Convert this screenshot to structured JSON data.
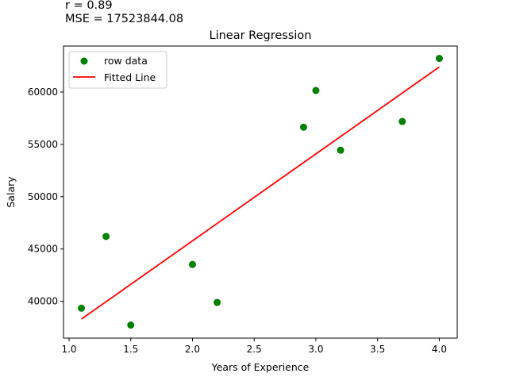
{
  "annotations": {
    "r_text": "r = 0.89",
    "mse_text": "MSE = 17523844.08"
  },
  "chart_data": {
    "type": "scatter",
    "title": "Linear Regression",
    "xlabel": "Years of Experience",
    "ylabel": "Salary",
    "xlim": [
      0.955,
      4.145
    ],
    "ylim": [
      36480,
      64400
    ],
    "xticks": [
      1.0,
      1.5,
      2.0,
      2.5,
      3.0,
      3.5,
      4.0
    ],
    "xtick_labels": [
      "1.0",
      "1.5",
      "2.0",
      "2.5",
      "3.0",
      "3.5",
      "4.0"
    ],
    "yticks": [
      40000,
      45000,
      50000,
      55000,
      60000
    ],
    "ytick_labels": [
      "40000",
      "45000",
      "50000",
      "55000",
      "60000"
    ],
    "grid": false,
    "legend_position": "top-left",
    "series": [
      {
        "name": "row data",
        "kind": "scatter",
        "color": "#008000",
        "points": [
          {
            "x": 1.1,
            "y": 39343
          },
          {
            "x": 1.3,
            "y": 46205
          },
          {
            "x": 1.5,
            "y": 37731
          },
          {
            "x": 2.0,
            "y": 43525
          },
          {
            "x": 2.2,
            "y": 39891
          },
          {
            "x": 2.9,
            "y": 56642
          },
          {
            "x": 3.0,
            "y": 60150
          },
          {
            "x": 3.2,
            "y": 54445
          },
          {
            "x": 3.7,
            "y": 57189
          },
          {
            "x": 4.0,
            "y": 63218
          }
        ]
      },
      {
        "name": "Fitted Line",
        "kind": "line",
        "color": "#ff0000",
        "points": [
          {
            "x": 1.1,
            "y": 38300
          },
          {
            "x": 4.0,
            "y": 62400
          }
        ]
      }
    ]
  }
}
